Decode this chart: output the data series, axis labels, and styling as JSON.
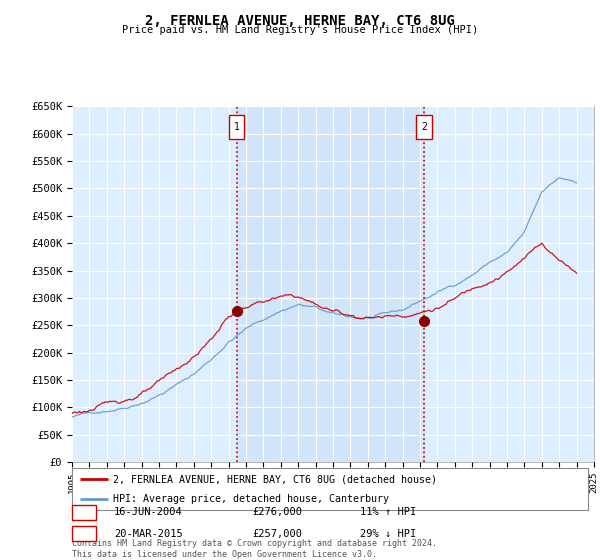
{
  "title": "2, FERNLEA AVENUE, HERNE BAY, CT6 8UG",
  "subtitle": "Price paid vs. HM Land Registry's House Price Index (HPI)",
  "bg_color": "#ddeeff",
  "line1_color": "#cc0000",
  "line2_color": "#6699cc",
  "transaction1_date": "16-JUN-2004",
  "transaction1_price": 276000,
  "transaction1_x": 2004.46,
  "transaction2_date": "20-MAR-2015",
  "transaction2_price": 257000,
  "transaction2_x": 2015.22,
  "transaction1_label": "11% ↑ HPI",
  "transaction2_label": "29% ↓ HPI",
  "legend_line1": "2, FERNLEA AVENUE, HERNE BAY, CT6 8UG (detached house)",
  "legend_line2": "HPI: Average price, detached house, Canterbury",
  "footer": "Contains HM Land Registry data © Crown copyright and database right 2024.\nThis data is licensed under the Open Government Licence v3.0.",
  "ylim": [
    0,
    650000
  ],
  "xlim_left": 1995,
  "xlim_right": 2025,
  "ytick_values": [
    0,
    50000,
    100000,
    150000,
    200000,
    250000,
    300000,
    350000,
    400000,
    450000,
    500000,
    550000,
    600000,
    650000
  ],
  "ytick_labels": [
    "£0",
    "£50K",
    "£100K",
    "£150K",
    "£200K",
    "£250K",
    "£300K",
    "£350K",
    "£400K",
    "£450K",
    "£500K",
    "£550K",
    "£600K",
    "£650K"
  ]
}
